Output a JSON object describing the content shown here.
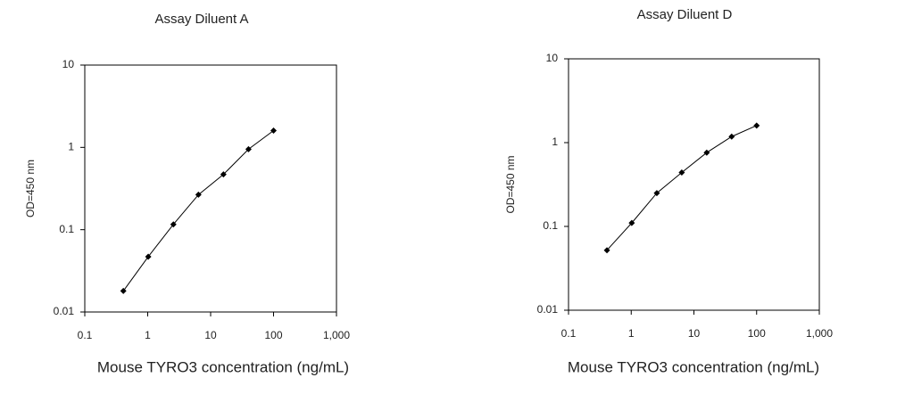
{
  "chart_data": [
    {
      "type": "line",
      "title": "Assay Diluent A",
      "xlabel": "Mouse TYRO3 concentration (ng/mL)",
      "ylabel": "OD=450 nm",
      "xscale": "log",
      "yscale": "log",
      "color": "#000000",
      "x": [
        0.41,
        1.02,
        2.56,
        6.4,
        16,
        40,
        100
      ],
      "values": [
        0.018,
        0.047,
        0.116,
        0.266,
        0.47,
        0.95,
        1.6
      ],
      "xlim": [
        0.1,
        1000
      ],
      "ylim": [
        0.01,
        10
      ],
      "xticks": [
        0.1,
        1,
        10,
        100,
        {
          "value": 1000,
          "label": "1,000"
        }
      ],
      "yticks": [
        0.01,
        0.1,
        1,
        10
      ]
    },
    {
      "type": "line",
      "title": "Assay Diluent D",
      "xlabel": "Mouse TYRO3 concentration (ng/mL)",
      "ylabel": "OD=450 nm",
      "xscale": "log",
      "yscale": "log",
      "color": "#000000",
      "x": [
        0.41,
        1.02,
        2.56,
        6.4,
        16,
        40,
        100
      ],
      "values": [
        0.052,
        0.11,
        0.25,
        0.44,
        0.76,
        1.18,
        1.6
      ],
      "xlim": [
        0.1,
        1000
      ],
      "ylim": [
        0.01,
        10
      ],
      "xticks": [
        0.1,
        1,
        10,
        100,
        {
          "value": 1000,
          "label": "1,000"
        }
      ],
      "yticks": [
        0.01,
        0.1,
        1,
        10
      ]
    }
  ]
}
